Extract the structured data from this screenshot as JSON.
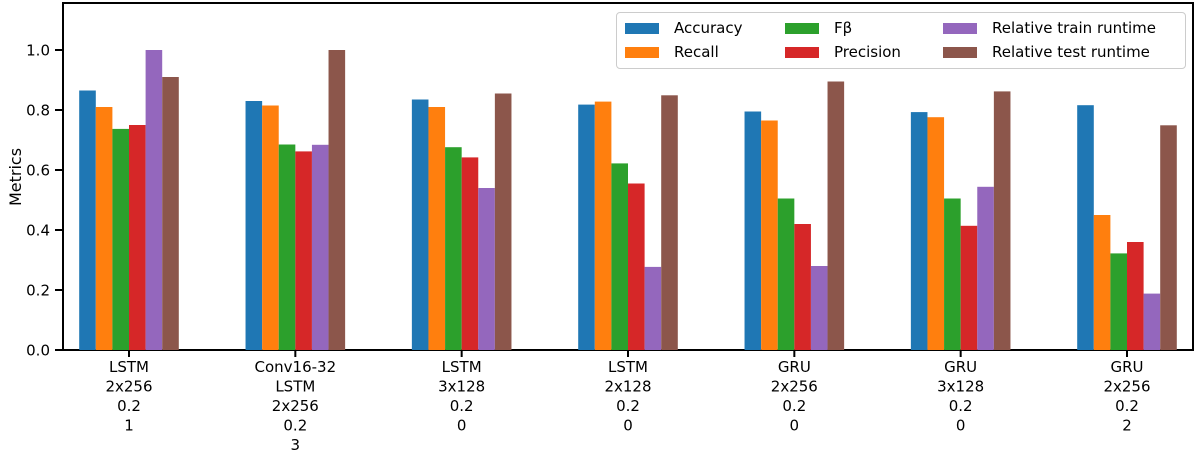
{
  "figure": {
    "background": "#ffffff",
    "axis_color": "#000000",
    "legend_border_color": "#cccccc"
  },
  "chart_data": {
    "type": "bar",
    "title": "",
    "xlabel": "",
    "ylabel": "Metrics",
    "ylim": [
      0.0,
      1.157
    ],
    "yticks": [
      "0.0",
      "0.2",
      "0.4",
      "0.6",
      "0.8",
      "1.0"
    ],
    "grid": false,
    "legend_position": "upper right",
    "legend_columns": 3,
    "categories": [
      "LSTM\n2x256\n0.2\n1",
      "Conv16-32\nLSTM\n2x256\n0.2\n3",
      "LSTM\n3x128\n0.2\n0",
      "LSTM\n2x128\n0.2\n0",
      "GRU\n2x256\n0.2\n0",
      "GRU\n3x128\n0.2\n0",
      "GRU\n2x256\n0.2\n2"
    ],
    "series": [
      {
        "name": "Accuracy",
        "color": "#1f77b4",
        "values": [
          0.865,
          0.83,
          0.835,
          0.818,
          0.795,
          0.793,
          0.816
        ]
      },
      {
        "name": "Recall",
        "color": "#ff7f0e",
        "values": [
          0.81,
          0.815,
          0.81,
          0.828,
          0.765,
          0.776,
          0.45
        ]
      },
      {
        "name": "Fβ",
        "color": "#2ca02c",
        "values": [
          0.737,
          0.685,
          0.676,
          0.622,
          0.505,
          0.505,
          0.322
        ]
      },
      {
        "name": "Precision",
        "color": "#d62728",
        "values": [
          0.75,
          0.662,
          0.642,
          0.555,
          0.42,
          0.414,
          0.36
        ]
      },
      {
        "name": "Relative train runtime",
        "color": "#9467bd",
        "values": [
          1.0,
          0.684,
          0.54,
          0.277,
          0.28,
          0.544,
          0.188
        ]
      },
      {
        "name": "Relative test runtime",
        "color": "#8c564b",
        "values": [
          0.91,
          1.0,
          0.855,
          0.849,
          0.895,
          0.862,
          0.749
        ]
      }
    ]
  }
}
